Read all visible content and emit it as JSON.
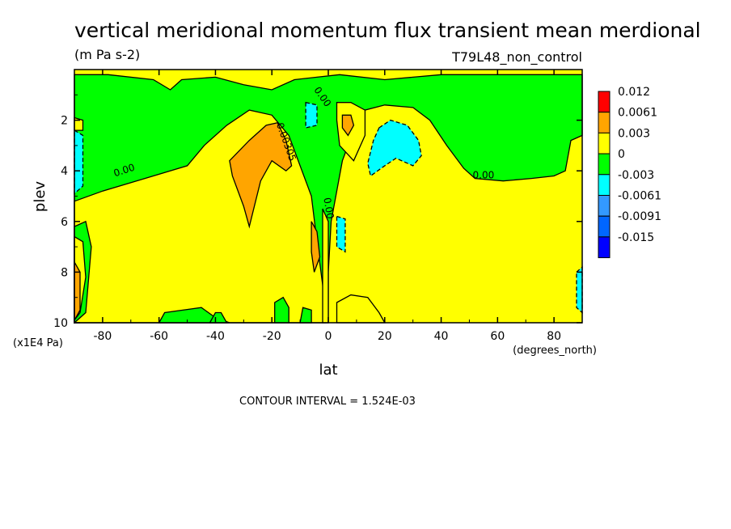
{
  "chart_data": {
    "type": "heatmap",
    "title": "vertical meridional momentum flux transient mean merdional",
    "units": "(m Pa s-2)",
    "run_label": "T79L48_non_control",
    "xlabel": "lat",
    "xunits": "(degrees_north)",
    "ylabel": "plev",
    "yunits": "(x1E4 Pa)",
    "xlim": [
      -90,
      90
    ],
    "ylim": [
      10,
      0
    ],
    "x_ticks": [
      -80,
      -60,
      -40,
      -20,
      0,
      20,
      40,
      60,
      80
    ],
    "y_ticks": [
      2,
      4,
      6,
      8,
      10
    ],
    "contour_interval_text": "CONTOUR INTERVAL = 1.524E-03",
    "contour_labels": [
      "0.00",
      "0.00",
      "0.00305",
      "0.00",
      "0.00"
    ],
    "colorbar": {
      "levels": [
        "0.012",
        "0.0061",
        "0.003",
        "0",
        "-0.003",
        "-0.0061",
        "-0.0091",
        "-0.015"
      ],
      "colors": [
        "#ff0000",
        "#ffa500",
        "#ffff00",
        "#00ff00",
        "#00ffff",
        "#3399ff",
        "#0066ff",
        "#0000ff"
      ]
    },
    "background_color": "#ffff00",
    "regions": [
      {
        "level": "0",
        "color": "#00ff00",
        "points": [
          [
            -90,
            0.2
          ],
          [
            -78,
            0.2
          ],
          [
            -62,
            0.4
          ],
          [
            -56,
            0.8
          ],
          [
            -52,
            0.4
          ],
          [
            -40,
            0.3
          ],
          [
            -30,
            0.6
          ],
          [
            -20,
            0.8
          ],
          [
            -12,
            0.4
          ],
          [
            -4,
            0.3
          ],
          [
            4,
            0.2
          ],
          [
            20,
            0.4
          ],
          [
            40,
            0.2
          ],
          [
            60,
            0.2
          ],
          [
            80,
            0.2
          ],
          [
            90,
            0.2
          ],
          [
            90,
            2.6
          ],
          [
            86,
            2.8
          ],
          [
            84,
            4.0
          ],
          [
            80,
            4.2
          ],
          [
            72,
            4.3
          ],
          [
            62,
            4.4
          ],
          [
            52,
            4.3
          ],
          [
            48,
            3.9
          ],
          [
            42,
            3.0
          ],
          [
            36,
            2.0
          ],
          [
            30,
            1.5
          ],
          [
            20,
            1.4
          ],
          [
            13,
            1.6
          ],
          [
            9,
            2.4
          ],
          [
            5,
            3.6
          ],
          [
            1,
            6.0
          ],
          [
            0,
            8.0
          ],
          [
            0,
            10
          ],
          [
            -90,
            10
          ]
        ]
      },
      {
        "level": "0.003",
        "color": "#ffff00",
        "points": [
          [
            -90,
            5.2
          ],
          [
            -80,
            4.8
          ],
          [
            -65,
            4.3
          ],
          [
            -50,
            3.8
          ],
          [
            -44,
            3.0
          ],
          [
            -36,
            2.2
          ],
          [
            -28,
            1.6
          ],
          [
            -20,
            1.8
          ],
          [
            -14,
            2.6
          ],
          [
            -10,
            3.8
          ],
          [
            -6,
            5.0
          ],
          [
            -4,
            6.8
          ],
          [
            -2,
            8.5
          ],
          [
            -1,
            10
          ],
          [
            -90,
            10
          ]
        ]
      },
      {
        "level": "0.003",
        "color": "#ffff00",
        "points": [
          [
            -2,
            5.5
          ],
          [
            0,
            6.0
          ],
          [
            0,
            10
          ],
          [
            -2,
            10
          ]
        ]
      },
      {
        "level": "0",
        "color": "#00ff00",
        "points": [
          [
            -90,
            6.2
          ],
          [
            -86,
            6.0
          ],
          [
            -84,
            7.0
          ],
          [
            -86,
            9.6
          ],
          [
            -90,
            10
          ]
        ]
      },
      {
        "level": "0.003",
        "color": "#ffff00",
        "points": [
          [
            -90,
            6.6
          ],
          [
            -87,
            6.8
          ],
          [
            -86,
            8.2
          ],
          [
            -88,
            9.6
          ],
          [
            -90,
            9.9
          ]
        ]
      },
      {
        "level": "0.0061",
        "color": "#ffa500",
        "points": [
          [
            -90,
            7.6
          ],
          [
            -88,
            8.0
          ],
          [
            -88,
            9.5
          ],
          [
            -90,
            9.9
          ]
        ]
      },
      {
        "level": "0.0061",
        "color": "#ffa500",
        "points": [
          [
            -35,
            3.6
          ],
          [
            -28,
            2.8
          ],
          [
            -22,
            2.2
          ],
          [
            -18,
            2.1
          ],
          [
            -15,
            2.8
          ],
          [
            -13,
            3.8
          ],
          [
            -15,
            4.0
          ],
          [
            -20,
            3.6
          ],
          [
            -24,
            4.4
          ],
          [
            -28,
            6.2
          ],
          [
            -30,
            5.4
          ],
          [
            -34,
            4.2
          ]
        ]
      },
      {
        "level": "0.0061",
        "color": "#ffa500",
        "points": [
          [
            -6,
            6.0
          ],
          [
            -4,
            6.4
          ],
          [
            -3,
            7.4
          ],
          [
            -5,
            8.0
          ],
          [
            -6,
            7.2
          ]
        ]
      },
      {
        "level": "0.003",
        "color": "#ffff00",
        "points": [
          [
            3,
            1.3
          ],
          [
            8,
            1.3
          ],
          [
            13,
            1.6
          ],
          [
            13,
            2.6
          ],
          [
            9,
            3.6
          ],
          [
            4,
            3.0
          ],
          [
            3,
            2.0
          ]
        ]
      },
      {
        "level": "0.0061",
        "color": "#ffa500",
        "points": [
          [
            5,
            1.8
          ],
          [
            8,
            1.8
          ],
          [
            9,
            2.2
          ],
          [
            7,
            2.6
          ],
          [
            5,
            2.3
          ]
        ]
      },
      {
        "level": "-0.003",
        "color": "#00ffff",
        "points": [
          [
            18,
            2.3
          ],
          [
            22,
            2.0
          ],
          [
            28,
            2.2
          ],
          [
            32,
            2.8
          ],
          [
            33,
            3.4
          ],
          [
            30,
            3.8
          ],
          [
            24,
            3.5
          ],
          [
            20,
            3.8
          ],
          [
            15,
            4.2
          ],
          [
            14,
            3.7
          ],
          [
            16,
            2.8
          ]
        ]
      },
      {
        "level": "-0.003",
        "color": "#00ffff",
        "points": [
          [
            -8,
            1.3
          ],
          [
            -4,
            1.4
          ],
          [
            -4,
            2.2
          ],
          [
            -8,
            2.3
          ]
        ]
      },
      {
        "level": "-0.003",
        "color": "#00ffff",
        "points": [
          [
            3,
            5.8
          ],
          [
            6,
            5.9
          ],
          [
            6,
            7.2
          ],
          [
            3,
            7.0
          ]
        ]
      },
      {
        "level": "-0.003",
        "color": "#00ffff",
        "points": [
          [
            -90,
            2.4
          ],
          [
            -87,
            2.6
          ],
          [
            -87,
            4.6
          ],
          [
            -90,
            4.9
          ]
        ]
      },
      {
        "level": "-0.003",
        "color": "#00ffff",
        "points": [
          [
            88,
            8.0
          ],
          [
            90,
            7.8
          ],
          [
            90,
            9.6
          ],
          [
            88,
            9.4
          ]
        ]
      },
      {
        "level": "0.003",
        "color": "#ffff00",
        "points": [
          [
            3,
            9.2
          ],
          [
            8,
            8.9
          ],
          [
            14,
            9.0
          ],
          [
            18,
            9.6
          ],
          [
            20,
            10
          ],
          [
            3,
            10
          ]
        ]
      },
      {
        "level": "0.003",
        "color": "#ffff00",
        "points": [
          [
            -90,
            1.9
          ],
          [
            -87,
            2.0
          ],
          [
            -87,
            2.4
          ],
          [
            -90,
            2.4
          ]
        ]
      },
      {
        "level": "0",
        "color": "#00ff00",
        "points": [
          [
            -60,
            10
          ],
          [
            -58,
            9.6
          ],
          [
            -45,
            9.4
          ],
          [
            -40,
            9.8
          ],
          [
            -35,
            10
          ]
        ]
      },
      {
        "level": "0",
        "color": "#00ff00",
        "points": [
          [
            -19,
            10
          ],
          [
            -19,
            9.2
          ],
          [
            -16,
            9.0
          ],
          [
            -14,
            9.4
          ],
          [
            -14,
            10
          ]
        ]
      },
      {
        "level": "0",
        "color": "#00ff00",
        "points": [
          [
            -42,
            10
          ],
          [
            -40,
            9.6
          ],
          [
            -38,
            9.6
          ],
          [
            -36,
            10
          ]
        ]
      },
      {
        "level": "0",
        "color": "#00ff00",
        "points": [
          [
            -10,
            10
          ],
          [
            -9,
            9.4
          ],
          [
            -6,
            9.5
          ],
          [
            -6,
            10
          ]
        ]
      }
    ]
  }
}
